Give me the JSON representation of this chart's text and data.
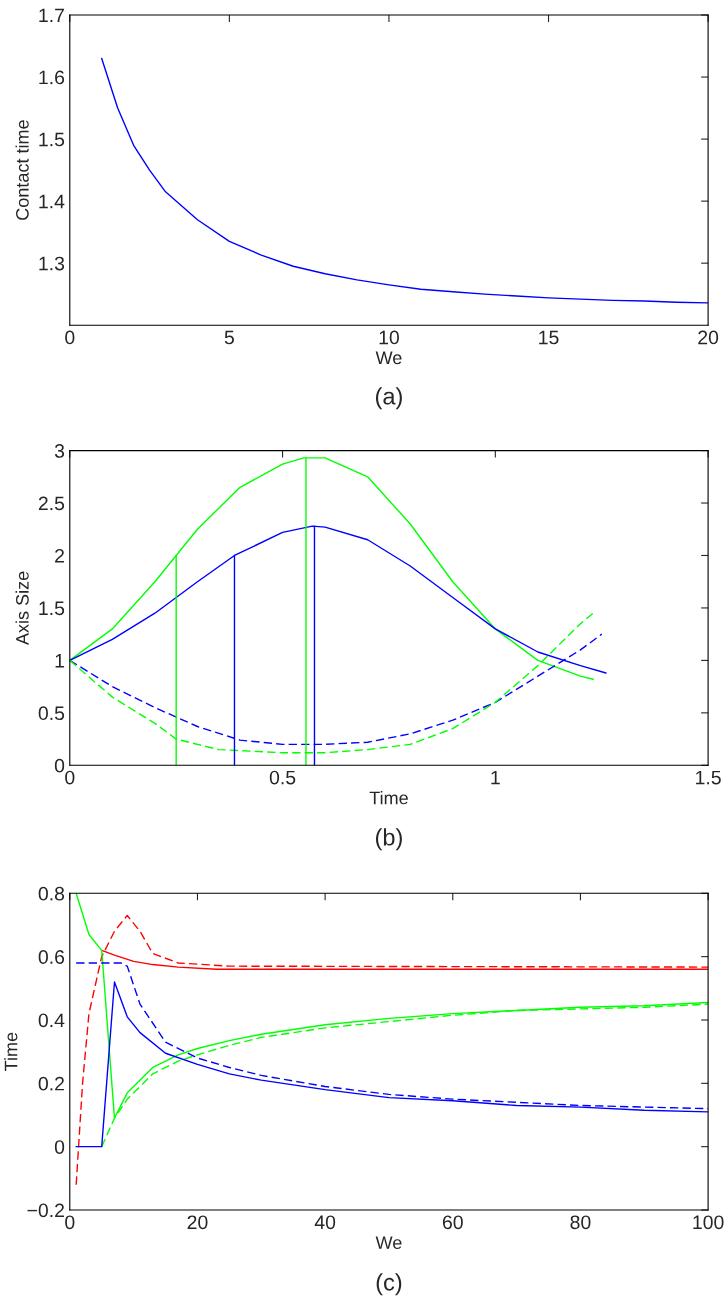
{
  "chart_data": [
    {
      "type": "line",
      "xlabel": "We",
      "ylabel": "Contact time",
      "annotations": [
        "(a)"
      ],
      "xlim": [
        0,
        20
      ],
      "ylim": [
        1.2,
        1.7
      ],
      "xticks": [
        0,
        5,
        10,
        15,
        20
      ],
      "yticks": [
        1.3,
        1.4,
        1.5,
        1.6,
        1.7
      ],
      "grid": false,
      "legend": false,
      "series": [
        {
          "color": "#0000ff",
          "line_style": "solid",
          "x": [
            1,
            1.5,
            2,
            2.5,
            3,
            4,
            5,
            6,
            7,
            8,
            9,
            10,
            11,
            12,
            13,
            14,
            15,
            16,
            17,
            18,
            19,
            20
          ],
          "values": [
            1.63,
            1.55,
            1.49,
            1.45,
            1.415,
            1.37,
            1.335,
            1.313,
            1.295,
            1.283,
            1.273,
            1.265,
            1.258,
            1.254,
            1.25,
            1.247,
            1.244,
            1.242,
            1.24,
            1.239,
            1.237,
            1.236
          ]
        }
      ]
    },
    {
      "type": "line",
      "xlabel": "Time",
      "ylabel": "Axis Size",
      "annotations": [
        "(b)"
      ],
      "xlim": [
        0,
        1.5
      ],
      "ylim": [
        0,
        3
      ],
      "xticks": [
        0,
        0.5,
        1,
        1.5
      ],
      "yticks": [
        0,
        0.5,
        1,
        1.5,
        2,
        2.5,
        3
      ],
      "grid": false,
      "legend": false,
      "series": [
        {
          "color": "#00ff00",
          "line_style": "solid",
          "x": [
            0,
            0.1,
            0.2,
            0.25,
            0.3,
            0.4,
            0.5,
            0.55,
            0.6,
            0.7,
            0.8,
            0.9,
            1.0,
            1.1,
            1.2,
            1.23
          ],
          "values": [
            1,
            1.3,
            1.75,
            2.0,
            2.25,
            2.65,
            2.87,
            2.93,
            2.93,
            2.75,
            2.3,
            1.75,
            1.3,
            1.0,
            0.85,
            0.82
          ]
        },
        {
          "color": "#0000ff",
          "line_style": "solid",
          "x": [
            0,
            0.1,
            0.2,
            0.25,
            0.3,
            0.387,
            0.5,
            0.57,
            0.6,
            0.7,
            0.8,
            0.9,
            1.0,
            1.1,
            1.2,
            1.26
          ],
          "values": [
            1,
            1.2,
            1.45,
            1.6,
            1.75,
            2.0,
            2.22,
            2.28,
            2.27,
            2.15,
            1.9,
            1.6,
            1.3,
            1.08,
            0.95,
            0.88
          ]
        },
        {
          "color": "#0000ff",
          "line_style": "dashed",
          "x": [
            0,
            0.1,
            0.2,
            0.3,
            0.4,
            0.5,
            0.6,
            0.7,
            0.8,
            0.9,
            1.0,
            1.1,
            1.2,
            1.25
          ],
          "values": [
            1,
            0.75,
            0.55,
            0.37,
            0.24,
            0.2,
            0.2,
            0.22,
            0.3,
            0.43,
            0.6,
            0.85,
            1.1,
            1.25
          ]
        },
        {
          "color": "#00ff00",
          "line_style": "dashed",
          "x": [
            0,
            0.1,
            0.2,
            0.25,
            0.3,
            0.35,
            0.5,
            0.6,
            0.7,
            0.8,
            0.9,
            1.0,
            1.1,
            1.2,
            1.23
          ],
          "values": [
            1,
            0.65,
            0.4,
            0.25,
            0.2,
            0.15,
            0.12,
            0.12,
            0.15,
            0.2,
            0.35,
            0.6,
            0.95,
            1.35,
            1.45
          ]
        },
        {
          "color": "#00ff00",
          "line_style": "solid",
          "x": [
            0.25,
            0.25
          ],
          "values": [
            0,
            2.0
          ]
        },
        {
          "color": "#00ff00",
          "line_style": "solid",
          "x": [
            0.555,
            0.555
          ],
          "values": [
            0,
            2.93
          ]
        },
        {
          "color": "#0000ff",
          "line_style": "solid",
          "x": [
            0.387,
            0.387
          ],
          "values": [
            0,
            2.0
          ]
        },
        {
          "color": "#0000ff",
          "line_style": "solid",
          "x": [
            0.575,
            0.575
          ],
          "values": [
            0,
            2.28
          ]
        }
      ]
    },
    {
      "type": "line",
      "xlabel": "We",
      "ylabel": "Time",
      "annotations": [
        "(c)"
      ],
      "xlim": [
        0,
        100
      ],
      "ylim": [
        -0.2,
        0.8
      ],
      "xticks": [
        0,
        20,
        40,
        60,
        80,
        100
      ],
      "yticks": [
        {
          "value": -0.2,
          "label": "−0.2"
        },
        0,
        0.2,
        0.4,
        0.6,
        0.8
      ],
      "grid": false,
      "legend": false,
      "series": [
        {
          "color": "#ff0000",
          "line_style": "solid",
          "x": [
            5,
            7,
            10,
            13,
            17,
            23,
            100
          ],
          "values": [
            0.62,
            0.605,
            0.585,
            0.575,
            0.567,
            0.56,
            0.56
          ]
        },
        {
          "color": "#ff0000",
          "line_style": "dashed",
          "x": [
            1,
            2,
            3,
            5,
            7,
            9,
            11,
            13,
            17,
            25,
            100
          ],
          "values": [
            -0.12,
            0.2,
            0.42,
            0.6,
            0.68,
            0.73,
            0.68,
            0.61,
            0.58,
            0.57,
            0.567
          ]
        },
        {
          "color": "#00ff00",
          "line_style": "solid",
          "x": [
            1,
            3,
            5,
            7,
            9,
            13,
            17,
            20,
            25,
            30,
            35,
            40,
            50,
            60,
            70,
            80,
            90,
            100
          ],
          "values": [
            0.8,
            0.67,
            0.62,
            0.09,
            0.17,
            0.25,
            0.29,
            0.31,
            0.335,
            0.355,
            0.37,
            0.385,
            0.405,
            0.42,
            0.43,
            0.44,
            0.445,
            0.455
          ]
        },
        {
          "color": "#00ff00",
          "line_style": "dashed",
          "x": [
            5,
            7,
            9,
            13,
            17,
            20,
            25,
            30,
            40,
            50,
            60,
            70,
            80,
            90,
            100
          ],
          "values": [
            0.0,
            0.09,
            0.15,
            0.23,
            0.27,
            0.29,
            0.32,
            0.345,
            0.375,
            0.395,
            0.415,
            0.43,
            0.435,
            0.44,
            0.45
          ]
        },
        {
          "color": "#0000ff",
          "line_style": "solid",
          "x": [
            1,
            5,
            7,
            9,
            11,
            15,
            20,
            25,
            30,
            40,
            50,
            60,
            70,
            80,
            90,
            100
          ],
          "values": [
            0,
            0,
            0.52,
            0.41,
            0.36,
            0.295,
            0.26,
            0.23,
            0.21,
            0.18,
            0.155,
            0.145,
            0.13,
            0.125,
            0.115,
            0.11
          ]
        },
        {
          "color": "#0000ff",
          "line_style": "dashed",
          "x": [
            1,
            8,
            9,
            11,
            15,
            20,
            25,
            30,
            40,
            50,
            60,
            70,
            80,
            90,
            100
          ],
          "values": [
            0.58,
            0.58,
            0.57,
            0.45,
            0.33,
            0.28,
            0.25,
            0.225,
            0.19,
            0.165,
            0.15,
            0.14,
            0.13,
            0.125,
            0.12
          ]
        }
      ]
    }
  ]
}
